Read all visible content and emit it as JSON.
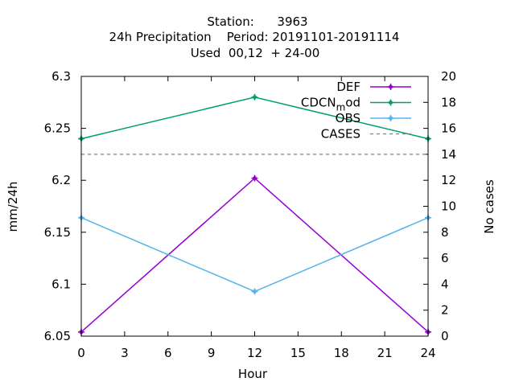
{
  "chart_data": {
    "type": "line",
    "title_lines": [
      "Station:      3963",
      "24h Precipitation    Period: 20191101-20191114",
      "Used  00,12  + 24-00"
    ],
    "xlabel": "Hour",
    "ylabel": "mm/24h",
    "y2label": "No cases",
    "xlim": [
      0,
      24
    ],
    "ylim": [
      6.05,
      6.3
    ],
    "y2lim": [
      0,
      20
    ],
    "xticks": [
      "0",
      "3",
      "6",
      "9",
      "12",
      "15",
      "18",
      "21",
      "24"
    ],
    "yticks": [
      "6.05",
      "6.1",
      "6.15",
      "6.2",
      "6.25",
      "6.3"
    ],
    "y2ticks": [
      "0",
      "2",
      "4",
      "6",
      "8",
      "10",
      "12",
      "14",
      "16",
      "18",
      "20"
    ],
    "grid": false,
    "legend_position": "top-right",
    "series": [
      {
        "name": "DEF",
        "color": "#9400d3",
        "axis": "y",
        "x": [
          0,
          12,
          24
        ],
        "values": [
          6.054,
          6.202,
          6.054
        ]
      },
      {
        "name": "CDCN_mod",
        "legend_base": "CDCN",
        "legend_sub": "m",
        "legend_tail": "od",
        "color": "#009e73",
        "axis": "y",
        "x": [
          0,
          12,
          24
        ],
        "values": [
          6.24,
          6.28,
          6.24
        ]
      },
      {
        "name": "OBS",
        "color": "#56b4e9",
        "axis": "y",
        "x": [
          0,
          12,
          24
        ],
        "values": [
          6.164,
          6.093,
          6.164
        ]
      },
      {
        "name": "CASES",
        "color": "#808080",
        "axis": "y2",
        "dashed": true,
        "x": [
          0,
          24
        ],
        "values": [
          14,
          14
        ]
      }
    ]
  }
}
